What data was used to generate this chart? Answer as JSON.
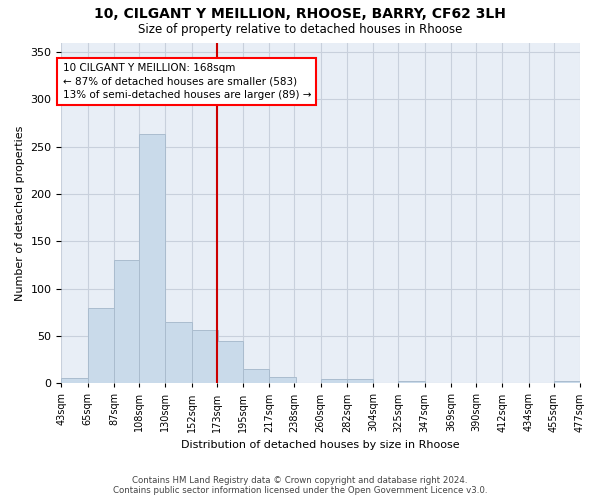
{
  "title1": "10, CILGANT Y MEILLION, RHOOSE, BARRY, CF62 3LH",
  "title2": "Size of property relative to detached houses in Rhoose",
  "xlabel": "Distribution of detached houses by size in Rhoose",
  "ylabel": "Number of detached properties",
  "footer1": "Contains HM Land Registry data © Crown copyright and database right 2024.",
  "footer2": "Contains public sector information licensed under the Open Government Licence v3.0.",
  "bar_color": "#c9daea",
  "bar_edge_color": "#aabcce",
  "grid_color": "#c8d0dc",
  "background_color": "#e8eef6",
  "annotation_line1": "10 CILGANT Y MEILLION: 168sqm",
  "annotation_line2": "← 87% of detached houses are smaller (583)",
  "annotation_line3": "13% of semi-detached houses are larger (89) →",
  "vline_x_index": 6,
  "vline_color": "#cc0000",
  "bins": [
    43,
    65,
    87,
    108,
    130,
    152,
    173,
    195,
    217,
    238,
    260,
    282,
    304,
    325,
    347,
    369,
    390,
    412,
    434,
    455,
    477
  ],
  "bar_heights": [
    6,
    80,
    130,
    263,
    65,
    56,
    45,
    15,
    7,
    0,
    5,
    5,
    0,
    2,
    0,
    0,
    0,
    0,
    0,
    2
  ],
  "ylim": [
    0,
    360
  ],
  "yticks": [
    0,
    50,
    100,
    150,
    200,
    250,
    300,
    350
  ]
}
